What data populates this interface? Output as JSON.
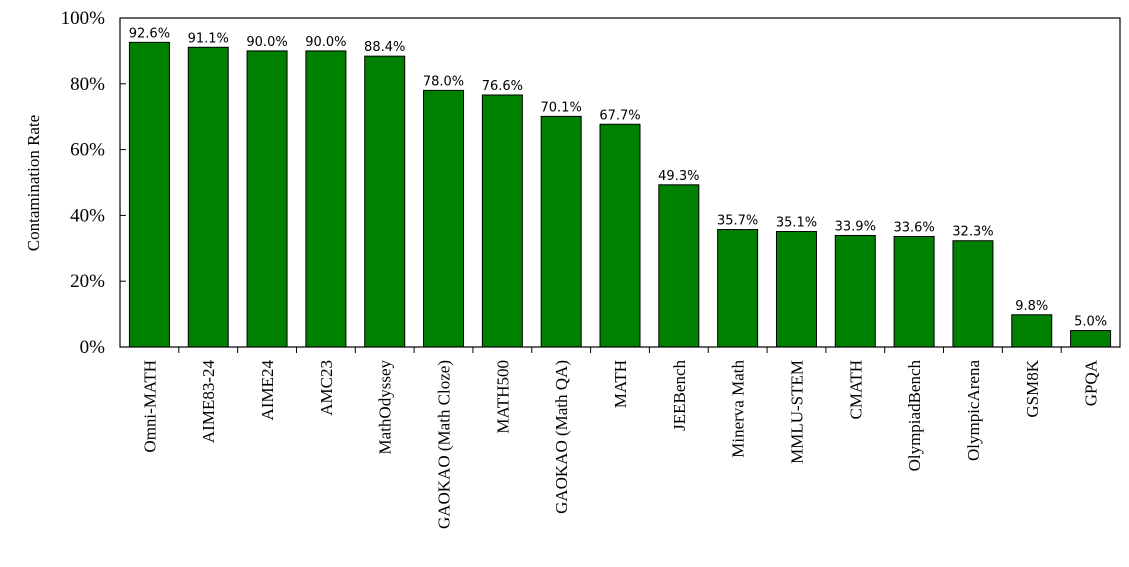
{
  "chart_data": {
    "type": "bar",
    "ylabel": "Contamination Rate",
    "ylim": [
      0,
      100
    ],
    "yticks": [
      "0%",
      "20%",
      "40%",
      "60%",
      "80%",
      "100%"
    ],
    "grid": false,
    "bar_color": "#008000",
    "categories": [
      "Omni-MATH",
      "AIME83-24",
      "AIME24",
      "AMC23",
      "MathOdyssey",
      "GAOKAO (Math Cloze)",
      "MATH500",
      "GAOKAO (Math QA)",
      "MATH",
      "JEEBench",
      "Minerva Math",
      "MMLU-STEM",
      "CMATH",
      "OlympiadBench",
      "OlympicArena",
      "GSM8K",
      "GPQA"
    ],
    "values": [
      92.6,
      91.1,
      90.0,
      90.0,
      88.4,
      78.0,
      76.6,
      70.1,
      67.7,
      49.3,
      35.7,
      35.1,
      33.9,
      33.6,
      32.3,
      9.8,
      5.0
    ],
    "value_labels": [
      "92.6%",
      "91.1%",
      "90.0%",
      "90.0%",
      "88.4%",
      "78.0%",
      "76.6%",
      "70.1%",
      "67.7%",
      "49.3%",
      "35.7%",
      "35.1%",
      "33.9%",
      "33.6%",
      "32.3%",
      "9.8%",
      "5.0%"
    ]
  }
}
